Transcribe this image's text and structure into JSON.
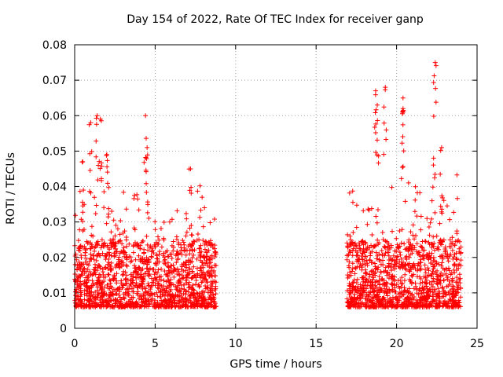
{
  "chart_data": {
    "type": "scatter",
    "title": "Day 154 of 2022, Rate Of TEC Index for receiver ganp",
    "xlabel": "GPS time / hours",
    "ylabel": "ROTI / TECUs",
    "xlim": [
      0,
      25
    ],
    "ylim": [
      0,
      0.08
    ],
    "xticks": [
      0,
      5,
      10,
      15,
      20,
      25
    ],
    "yticks": [
      0,
      0.01,
      0.02,
      0.03,
      0.04,
      0.05,
      0.06,
      0.07,
      0.08
    ],
    "ytick_labels": [
      "0",
      "0.01",
      "0.02",
      "0.03",
      "0.04",
      "0.05",
      "0.06",
      "0.07",
      "0.08"
    ],
    "grid": true,
    "marker": "+",
    "color": "#ff0000",
    "series": [
      {
        "name": "ROTI",
        "segments": [
          {
            "x_range": [
              0.0,
              8.8
            ],
            "typical": [
              0.006,
              0.025
            ],
            "peaks": [
              [
                1.0,
                0.058
              ],
              [
                1.4,
                0.06
              ],
              [
                1.6,
                0.059
              ],
              [
                4.4,
                0.06
              ],
              [
                4.5,
                0.051
              ],
              [
                7.2,
                0.045
              ],
              [
                0.5,
                0.047
              ],
              [
                2.0,
                0.049
              ]
            ]
          },
          {
            "x_range": [
              16.9,
              24.0
            ],
            "typical": [
              0.006,
              0.025
            ],
            "peaks": [
              [
                18.7,
                0.067
              ],
              [
                18.8,
                0.063
              ],
              [
                19.3,
                0.068
              ],
              [
                20.4,
                0.065
              ],
              [
                20.4,
                0.062
              ],
              [
                22.4,
                0.075
              ],
              [
                22.3,
                0.048
              ],
              [
                22.8,
                0.051
              ]
            ]
          }
        ]
      }
    ]
  }
}
